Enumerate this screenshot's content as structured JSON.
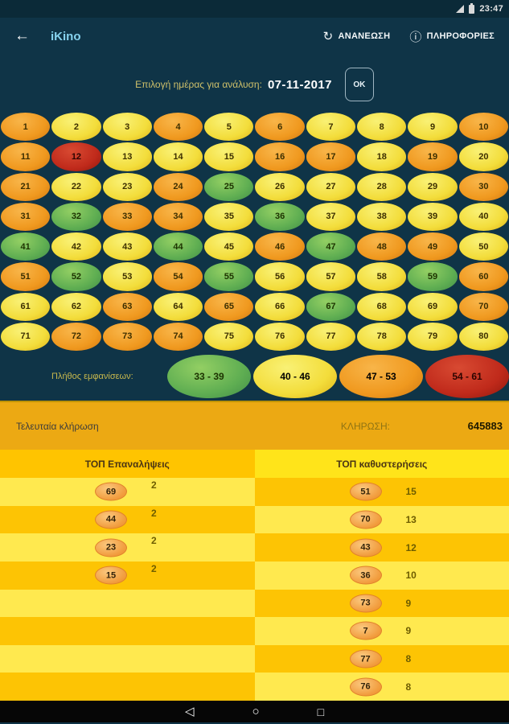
{
  "status_bar": {
    "time": "23:47"
  },
  "app_bar": {
    "title": "iKino",
    "refresh_label": "ΑΝΑΝΕΩΣΗ",
    "info_label": "ΠΛΗΡΟΦΟΡΙΕΣ"
  },
  "date_row": {
    "label": "Επιλογή ημέρας για ανάλυση:",
    "date": "07-11-2017",
    "ok_label": "ΟΚ"
  },
  "palette": {
    "background": "#0f3447",
    "green": "#5fae52",
    "yellow": "#f3dd3b",
    "orange": "#f0991f",
    "red": "#c02a1b",
    "amber_bar": "#eca913",
    "table_gold": "#fdc404",
    "table_light": "#ffe94f",
    "header_left": "#ffc400",
    "header_right": "#ffe41a",
    "title_accent": "#86d2ee"
  },
  "grid": {
    "cells": [
      {
        "n": 1,
        "c": "o"
      },
      {
        "n": 2,
        "c": "y"
      },
      {
        "n": 3,
        "c": "y"
      },
      {
        "n": 4,
        "c": "o"
      },
      {
        "n": 5,
        "c": "y"
      },
      {
        "n": 6,
        "c": "o"
      },
      {
        "n": 7,
        "c": "y"
      },
      {
        "n": 8,
        "c": "y"
      },
      {
        "n": 9,
        "c": "y"
      },
      {
        "n": 10,
        "c": "o"
      },
      {
        "n": 11,
        "c": "o"
      },
      {
        "n": 12,
        "c": "r"
      },
      {
        "n": 13,
        "c": "y"
      },
      {
        "n": 14,
        "c": "y"
      },
      {
        "n": 15,
        "c": "y"
      },
      {
        "n": 16,
        "c": "o"
      },
      {
        "n": 17,
        "c": "o"
      },
      {
        "n": 18,
        "c": "y"
      },
      {
        "n": 19,
        "c": "o"
      },
      {
        "n": 20,
        "c": "y"
      },
      {
        "n": 21,
        "c": "o"
      },
      {
        "n": 22,
        "c": "y"
      },
      {
        "n": 23,
        "c": "y"
      },
      {
        "n": 24,
        "c": "o"
      },
      {
        "n": 25,
        "c": "g"
      },
      {
        "n": 26,
        "c": "y"
      },
      {
        "n": 27,
        "c": "y"
      },
      {
        "n": 28,
        "c": "y"
      },
      {
        "n": 29,
        "c": "y"
      },
      {
        "n": 30,
        "c": "o"
      },
      {
        "n": 31,
        "c": "o"
      },
      {
        "n": 32,
        "c": "g"
      },
      {
        "n": 33,
        "c": "o"
      },
      {
        "n": 34,
        "c": "o"
      },
      {
        "n": 35,
        "c": "y"
      },
      {
        "n": 36,
        "c": "g"
      },
      {
        "n": 37,
        "c": "y"
      },
      {
        "n": 38,
        "c": "y"
      },
      {
        "n": 39,
        "c": "y"
      },
      {
        "n": 40,
        "c": "y"
      },
      {
        "n": 41,
        "c": "g"
      },
      {
        "n": 42,
        "c": "y"
      },
      {
        "n": 43,
        "c": "y"
      },
      {
        "n": 44,
        "c": "g"
      },
      {
        "n": 45,
        "c": "y"
      },
      {
        "n": 46,
        "c": "o"
      },
      {
        "n": 47,
        "c": "g"
      },
      {
        "n": 48,
        "c": "o"
      },
      {
        "n": 49,
        "c": "o"
      },
      {
        "n": 50,
        "c": "y"
      },
      {
        "n": 51,
        "c": "o"
      },
      {
        "n": 52,
        "c": "g"
      },
      {
        "n": 53,
        "c": "y"
      },
      {
        "n": 54,
        "c": "o"
      },
      {
        "n": 55,
        "c": "g"
      },
      {
        "n": 56,
        "c": "y"
      },
      {
        "n": 57,
        "c": "y"
      },
      {
        "n": 58,
        "c": "y"
      },
      {
        "n": 59,
        "c": "g"
      },
      {
        "n": 60,
        "c": "o"
      },
      {
        "n": 61,
        "c": "y"
      },
      {
        "n": 62,
        "c": "y"
      },
      {
        "n": 63,
        "c": "o"
      },
      {
        "n": 64,
        "c": "y"
      },
      {
        "n": 65,
        "c": "o"
      },
      {
        "n": 66,
        "c": "y"
      },
      {
        "n": 67,
        "c": "g"
      },
      {
        "n": 68,
        "c": "y"
      },
      {
        "n": 69,
        "c": "y"
      },
      {
        "n": 70,
        "c": "o"
      },
      {
        "n": 71,
        "c": "y"
      },
      {
        "n": 72,
        "c": "o"
      },
      {
        "n": 73,
        "c": "o"
      },
      {
        "n": 74,
        "c": "o"
      },
      {
        "n": 75,
        "c": "y"
      },
      {
        "n": 76,
        "c": "y"
      },
      {
        "n": 77,
        "c": "y"
      },
      {
        "n": 78,
        "c": "y"
      },
      {
        "n": 79,
        "c": "y"
      },
      {
        "n": 80,
        "c": "y"
      }
    ]
  },
  "legend": {
    "label": "Πλήθος εμφανίσεων:",
    "items": [
      {
        "range": "33 - 39",
        "color": "g"
      },
      {
        "range": "40 - 46",
        "color": "y"
      },
      {
        "range": "47 - 53",
        "color": "o"
      },
      {
        "range": "54 - 61",
        "color": "r"
      }
    ]
  },
  "last_draw": {
    "label": "Τελευταία κλήρωση",
    "draw_label": "ΚΛΗΡΩΣΗ:",
    "number": "645883"
  },
  "tables": {
    "left": {
      "header": "ΤΟΠ Επαναλήψεις",
      "rows": [
        {
          "number": "69",
          "value": "2"
        },
        {
          "number": "44",
          "value": "2"
        },
        {
          "number": "23",
          "value": "2"
        },
        {
          "number": "15",
          "value": "2"
        },
        {
          "number": "",
          "value": ""
        },
        {
          "number": "",
          "value": ""
        },
        {
          "number": "",
          "value": ""
        },
        {
          "number": "",
          "value": ""
        }
      ]
    },
    "right": {
      "header": "ΤΟΠ καθυστερήσεις",
      "rows": [
        {
          "number": "51",
          "value": "15"
        },
        {
          "number": "70",
          "value": "13"
        },
        {
          "number": "43",
          "value": "12"
        },
        {
          "number": "36",
          "value": "10"
        },
        {
          "number": "73",
          "value": "9"
        },
        {
          "number": "7",
          "value": "9"
        },
        {
          "number": "77",
          "value": "8"
        },
        {
          "number": "76",
          "value": "8"
        }
      ]
    }
  },
  "nav_bar": {
    "back_icon": "◁",
    "home_icon": "○",
    "recents_icon": "□"
  }
}
